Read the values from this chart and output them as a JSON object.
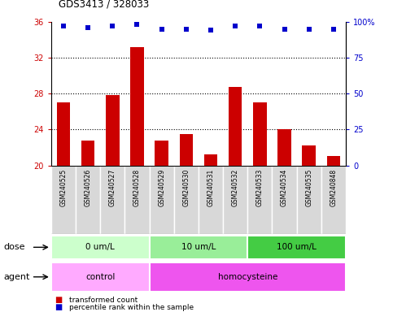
{
  "title": "GDS3413 / 328033",
  "samples": [
    "GSM240525",
    "GSM240526",
    "GSM240527",
    "GSM240528",
    "GSM240529",
    "GSM240530",
    "GSM240531",
    "GSM240532",
    "GSM240533",
    "GSM240534",
    "GSM240535",
    "GSM240848"
  ],
  "bar_values": [
    27.0,
    22.8,
    27.8,
    33.2,
    22.8,
    23.5,
    21.2,
    28.7,
    27.0,
    24.0,
    22.2,
    21.0
  ],
  "percentile_values": [
    97,
    96,
    97,
    98,
    95,
    95,
    94,
    97,
    97,
    95,
    95,
    95
  ],
  "bar_color": "#cc0000",
  "percentile_color": "#0000cc",
  "ylim_left": [
    20,
    36
  ],
  "ylim_right": [
    0,
    100
  ],
  "yticks_left": [
    20,
    24,
    28,
    32,
    36
  ],
  "yticks_right": [
    0,
    25,
    50,
    75,
    100
  ],
  "grid_values": [
    24,
    28,
    32
  ],
  "dose_groups": [
    {
      "label": "0 um/L",
      "start": 0,
      "end": 4,
      "color": "#ccffcc"
    },
    {
      "label": "10 um/L",
      "start": 4,
      "end": 8,
      "color": "#99ee99"
    },
    {
      "label": "100 um/L",
      "start": 8,
      "end": 12,
      "color": "#44cc44"
    }
  ],
  "agent_groups": [
    {
      "label": "control",
      "start": 0,
      "end": 4,
      "color": "#ffaaff"
    },
    {
      "label": "homocysteine",
      "start": 4,
      "end": 12,
      "color": "#ee55ee"
    }
  ],
  "dose_label": "dose",
  "agent_label": "agent",
  "legend_bar_label": "transformed count",
  "legend_pct_label": "percentile rank within the sample",
  "background_color": "#ffffff",
  "plot_bg_color": "#ffffff",
  "tick_bg_color": "#d8d8d8"
}
